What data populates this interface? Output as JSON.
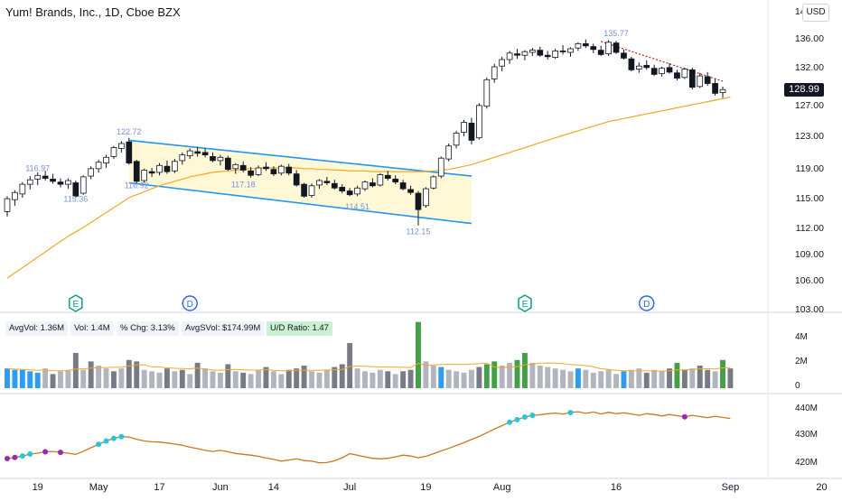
{
  "header": {
    "title": "Yum! Brands, Inc., 1D, Cboe BZX",
    "currency": "USD",
    "last_price": "128.99"
  },
  "colors": {
    "up": "#131722",
    "down": "#131722",
    "ma": "#f5a623",
    "channel": "#2196f3",
    "channel_fill": "#fff8d6",
    "vol_blue": "#2e9cf2",
    "vol_green": "#43a047",
    "vol_grey": "#b2b5be",
    "vol_dark": "#787b86",
    "rs_line": "#c8781f",
    "marker_cyan": "#26c6da",
    "marker_purple": "#9c27b0",
    "trend": "#b71c1c"
  },
  "stats": [
    {
      "text": "AvgVol: 1.36M",
      "hl": false
    },
    {
      "text": "Vol: 1.4M",
      "hl": false
    },
    {
      "text": "% Chg: 3.13%",
      "hl": false
    },
    {
      "text": "AvgSVol: $174.99M",
      "hl": false
    },
    {
      "text": "U/D Ratio: 1.47",
      "hl": true
    }
  ],
  "events": [
    {
      "label": "E",
      "date_index": 9
    },
    {
      "label": "D",
      "date_index": 24
    },
    {
      "label": "E",
      "date_index": 68
    },
    {
      "label": "D",
      "date_index": 84
    }
  ],
  "chart_data": {
    "type": "candlestick",
    "title": "Yum! Brands, Inc., 1D, Cboe BZX",
    "price_axis": {
      "ticks": [
        "140.00",
        "136.00",
        "132.00",
        "127.00",
        "123.00",
        "119.00",
        "115.00",
        "112.00",
        "109.00",
        "106.00",
        "103.00"
      ],
      "ylim": [
        103,
        140
      ]
    },
    "volume_axis": {
      "ticks": [
        "4M",
        "2M",
        "0"
      ],
      "ylim": [
        0,
        5
      ]
    },
    "rs_axis": {
      "ticks": [
        "440M",
        "430M",
        "420M"
      ],
      "ylim": [
        417,
        444
      ]
    },
    "x_axis": {
      "ticks": [
        {
          "label": "19",
          "index": 4
        },
        {
          "label": "May",
          "index": 12
        },
        {
          "label": "17",
          "index": 20
        },
        {
          "label": "Jun",
          "index": 28
        },
        {
          "label": "14",
          "index": 35
        },
        {
          "label": "Jul",
          "index": 45
        },
        {
          "label": "19",
          "index": 55
        },
        {
          "label": "Aug",
          "index": 65
        },
        {
          "label": "16",
          "index": 80
        },
        {
          "label": "Sep",
          "index": 95
        },
        {
          "label": "20",
          "index": 107
        }
      ],
      "count": 110
    },
    "annotations": [
      {
        "text": "116.97",
        "index": 4,
        "price": 118.6
      },
      {
        "text": "115.36",
        "index": 9,
        "price": 114.6
      },
      {
        "text": "122.72",
        "index": 16,
        "price": 123.1
      },
      {
        "text": "116.92",
        "index": 17,
        "price": 116.3
      },
      {
        "text": "117.18",
        "index": 31,
        "price": 116.4
      },
      {
        "text": "114.51",
        "index": 46,
        "price": 113.8
      },
      {
        "text": "112.15",
        "index": 54,
        "price": 111.2
      },
      {
        "text": "135.77",
        "index": 80,
        "price": 136.3
      }
    ],
    "channel": {
      "upper": [
        [
          16,
          122.4
        ],
        [
          61,
          117.9
        ]
      ],
      "lower": [
        [
          16,
          117.0
        ],
        [
          61,
          112.4
        ]
      ]
    },
    "trendline": [
      [
        78,
        135.5
      ],
      [
        94,
        130.1
      ]
    ],
    "ohlc": [
      [
        113.6,
        115.2,
        113.1,
        114.9
      ],
      [
        114.8,
        116.0,
        114.2,
        115.7
      ],
      [
        115.5,
        117.1,
        115.0,
        116.8
      ],
      [
        116.8,
        117.9,
        116.1,
        117.4
      ],
      [
        117.5,
        118.4,
        116.7,
        118.0
      ],
      [
        117.9,
        118.6,
        117.3,
        117.6
      ],
      [
        117.5,
        118.2,
        116.9,
        117.2
      ],
      [
        117.1,
        117.6,
        116.4,
        116.8
      ],
      [
        116.8,
        117.6,
        116.2,
        117.3
      ],
      [
        117.0,
        117.3,
        115.0,
        115.2
      ],
      [
        115.6,
        118.0,
        115.4,
        117.8
      ],
      [
        117.9,
        119.2,
        117.5,
        118.9
      ],
      [
        118.9,
        120.0,
        118.4,
        119.7
      ],
      [
        119.6,
        120.6,
        119.0,
        120.3
      ],
      [
        120.4,
        121.7,
        120.1,
        121.5
      ],
      [
        121.4,
        122.3,
        120.9,
        122.0
      ],
      [
        122.2,
        122.7,
        119.4,
        119.6
      ],
      [
        119.8,
        120.0,
        116.9,
        117.2
      ],
      [
        117.3,
        118.9,
        117.0,
        118.7
      ],
      [
        118.5,
        119.0,
        117.8,
        118.3
      ],
      [
        118.4,
        119.6,
        118.0,
        119.3
      ],
      [
        119.2,
        119.9,
        118.2,
        118.5
      ],
      [
        118.6,
        120.1,
        118.3,
        119.8
      ],
      [
        119.9,
        120.9,
        119.4,
        120.6
      ],
      [
        120.5,
        121.4,
        120.1,
        121.1
      ],
      [
        121.0,
        121.6,
        120.4,
        120.8
      ],
      [
        120.9,
        121.4,
        120.3,
        120.6
      ],
      [
        120.4,
        120.9,
        119.7,
        119.9
      ],
      [
        119.9,
        120.6,
        119.3,
        120.3
      ],
      [
        120.2,
        120.5,
        118.6,
        118.8
      ],
      [
        118.9,
        119.6,
        118.2,
        119.4
      ],
      [
        119.3,
        119.8,
        118.4,
        118.7
      ],
      [
        118.6,
        119.1,
        117.7,
        118.0
      ],
      [
        118.1,
        119.3,
        117.9,
        119.0
      ],
      [
        119.1,
        119.7,
        118.6,
        118.9
      ],
      [
        118.8,
        119.2,
        117.9,
        118.2
      ],
      [
        118.3,
        119.4,
        118.0,
        119.2
      ],
      [
        119.1,
        119.5,
        118.0,
        118.3
      ],
      [
        118.2,
        118.7,
        116.5,
        116.7
      ],
      [
        116.8,
        117.0,
        115.0,
        115.2
      ],
      [
        115.3,
        116.9,
        115.0,
        116.6
      ],
      [
        116.7,
        117.5,
        116.2,
        117.3
      ],
      [
        117.2,
        117.8,
        116.7,
        117.0
      ],
      [
        116.9,
        117.4,
        116.1,
        116.3
      ],
      [
        116.4,
        116.8,
        115.6,
        115.9
      ],
      [
        115.9,
        116.3,
        115.2,
        115.4
      ],
      [
        115.5,
        116.6,
        115.2,
        116.3
      ],
      [
        116.2,
        117.3,
        115.9,
        117.1
      ],
      [
        117.0,
        117.6,
        116.4,
        116.6
      ],
      [
        116.7,
        118.3,
        116.5,
        118.1
      ],
      [
        118.0,
        118.6,
        117.3,
        117.6
      ],
      [
        117.5,
        118.0,
        116.8,
        117.1
      ],
      [
        117.0,
        117.4,
        116.0,
        116.2
      ],
      [
        116.1,
        116.6,
        115.4,
        115.7
      ],
      [
        115.6,
        115.9,
        112.2,
        113.8
      ],
      [
        114.2,
        116.4,
        114.0,
        116.2
      ],
      [
        116.3,
        118.0,
        116.1,
        117.8
      ],
      [
        117.9,
        120.4,
        117.6,
        120.2
      ],
      [
        120.1,
        122.0,
        119.8,
        121.7
      ],
      [
        121.8,
        123.6,
        121.4,
        123.3
      ],
      [
        123.4,
        125.0,
        122.9,
        124.7
      ],
      [
        124.6,
        125.3,
        121.9,
        122.4
      ],
      [
        122.7,
        127.2,
        122.5,
        126.9
      ],
      [
        126.8,
        130.6,
        126.5,
        130.3
      ],
      [
        130.4,
        132.4,
        129.9,
        132.0
      ],
      [
        132.1,
        133.4,
        131.4,
        133.0
      ],
      [
        133.0,
        134.2,
        132.4,
        133.9
      ],
      [
        133.8,
        134.5,
        133.1,
        133.6
      ],
      [
        133.6,
        134.3,
        132.9,
        134.1
      ],
      [
        134.0,
        134.6,
        133.5,
        134.3
      ],
      [
        134.3,
        134.8,
        133.4,
        133.6
      ],
      [
        133.6,
        134.2,
        133.0,
        133.4
      ],
      [
        133.3,
        134.5,
        133.1,
        134.2
      ],
      [
        134.2,
        135.0,
        133.7,
        134.1
      ],
      [
        134.0,
        134.7,
        133.4,
        134.5
      ],
      [
        134.6,
        135.4,
        134.2,
        135.2
      ],
      [
        135.2,
        135.8,
        134.6,
        134.9
      ],
      [
        134.8,
        135.2,
        133.9,
        134.4
      ],
      [
        134.3,
        134.9,
        133.5,
        133.7
      ],
      [
        133.8,
        135.7,
        133.5,
        135.4
      ],
      [
        135.3,
        135.6,
        133.8,
        134.0
      ],
      [
        133.9,
        134.4,
        133.0,
        133.2
      ],
      [
        133.1,
        133.4,
        131.4,
        131.6
      ],
      [
        131.7,
        132.6,
        131.2,
        132.1
      ],
      [
        132.2,
        132.9,
        131.6,
        131.9
      ],
      [
        131.8,
        132.3,
        130.8,
        131.0
      ],
      [
        131.1,
        132.0,
        130.7,
        131.8
      ],
      [
        131.9,
        132.5,
        131.1,
        131.3
      ],
      [
        131.2,
        131.6,
        130.2,
        130.5
      ],
      [
        130.6,
        131.9,
        130.4,
        131.7
      ],
      [
        131.6,
        131.9,
        129.0,
        129.3
      ],
      [
        129.4,
        131.2,
        129.2,
        130.8
      ],
      [
        130.7,
        131.3,
        129.5,
        129.8
      ],
      [
        129.8,
        130.4,
        128.2,
        128.5
      ],
      [
        128.6,
        129.4,
        127.9,
        128.99
      ]
    ],
    "ma50": [
      106.2,
      106.8,
      107.4,
      108.0,
      108.6,
      109.2,
      109.8,
      110.4,
      111.0,
      111.5,
      112.0,
      112.5,
      113.0,
      113.5,
      114.0,
      114.5,
      115.0,
      115.4,
      115.8,
      116.2,
      116.6,
      116.9,
      117.2,
      117.5,
      117.8,
      118.0,
      118.2,
      118.4,
      118.5,
      118.6,
      118.7,
      118.8,
      118.9,
      118.9,
      119.0,
      119.0,
      119.0,
      119.0,
      119.0,
      118.9,
      118.9,
      118.8,
      118.8,
      118.7,
      118.7,
      118.6,
      118.6,
      118.6,
      118.5,
      118.5,
      118.5,
      118.5,
      118.5,
      118.5,
      118.5,
      118.5,
      118.6,
      118.7,
      118.8,
      119.0,
      119.2,
      119.4,
      119.7,
      120.0,
      120.3,
      120.6,
      120.9,
      121.2,
      121.5,
      121.8,
      122.1,
      122.4,
      122.7,
      123.0,
      123.3,
      123.6,
      123.9,
      124.2,
      124.5,
      124.8,
      125.0,
      125.2,
      125.4,
      125.6,
      125.8,
      126.0,
      126.2,
      126.4,
      126.6,
      126.8,
      127.0,
      127.2,
      127.4,
      127.6,
      127.8,
      128.0
    ],
    "volume": [
      1.4,
      1.3,
      1.3,
      1.2,
      1.1,
      1.4,
      1.0,
      1.2,
      1.3,
      2.5,
      1.3,
      1.9,
      1.6,
      1.4,
      1.2,
      1.4,
      2.0,
      1.9,
      1.3,
      1.2,
      1.1,
      1.4,
      1.2,
      1.3,
      1.0,
      1.8,
      1.4,
      1.2,
      1.1,
      1.7,
      1.2,
      1.1,
      1.0,
      1.3,
      1.5,
      1.2,
      1.0,
      1.3,
      1.4,
      1.6,
      1.2,
      1.1,
      1.3,
      1.5,
      1.7,
      3.2,
      1.4,
      1.2,
      1.1,
      1.3,
      1.2,
      1.0,
      1.2,
      1.3,
      4.7,
      1.9,
      1.6,
      1.5,
      1.3,
      1.2,
      1.1,
      1.3,
      1.5,
      1.7,
      1.9,
      1.6,
      1.8,
      2.0,
      2.5,
      1.8,
      1.6,
      1.5,
      1.4,
      1.3,
      1.2,
      1.4,
      1.3,
      1.1,
      1.2,
      1.3,
      1.0,
      1.2,
      1.3,
      1.4,
      1.1,
      1.3,
      1.2,
      1.4,
      1.8,
      1.3,
      1.4,
      1.6,
      1.3,
      1.2,
      2.0,
      1.4
    ],
    "volume_colors": [
      "blue",
      "blue",
      "blue",
      "blue",
      "blue",
      "grey",
      "dark",
      "grey",
      "grey",
      "dark",
      "grey",
      "dark",
      "grey",
      "grey",
      "dark",
      "grey",
      "dark",
      "dark",
      "grey",
      "grey",
      "grey",
      "dark",
      "grey",
      "dark",
      "grey",
      "dark",
      "grey",
      "grey",
      "grey",
      "dark",
      "grey",
      "dark",
      "grey",
      "grey",
      "dark",
      "grey",
      "grey",
      "dark",
      "dark",
      "dark",
      "grey",
      "grey",
      "grey",
      "dark",
      "dark",
      "dark",
      "grey",
      "grey",
      "grey",
      "grey",
      "dark",
      "grey",
      "dark",
      "dark",
      "green",
      "grey",
      "grey",
      "blue",
      "grey",
      "grey",
      "grey",
      "grey",
      "dark",
      "green",
      "green",
      "grey",
      "grey",
      "green",
      "green",
      "grey",
      "grey",
      "grey",
      "grey",
      "grey",
      "grey",
      "blue",
      "grey",
      "grey",
      "grey",
      "grey",
      "grey",
      "blue",
      "grey",
      "grey",
      "dark",
      "grey",
      "grey",
      "dark",
      "green",
      "dark",
      "grey",
      "dark",
      "dark",
      "grey",
      "green",
      "dark"
    ],
    "rs_line": [
      422.4,
      422.8,
      423.3,
      424.0,
      424.3,
      424.8,
      424.9,
      424.6,
      424.3,
      423.9,
      425.0,
      426.2,
      427.4,
      428.6,
      429.5,
      430.1,
      430.0,
      429.2,
      428.6,
      428.3,
      428.2,
      427.9,
      427.5,
      427.1,
      426.4,
      425.9,
      425.3,
      424.9,
      425.3,
      424.8,
      424.2,
      423.9,
      423.6,
      423.2,
      422.6,
      422.1,
      421.5,
      421.9,
      422.3,
      421.7,
      421.5,
      420.9,
      421.0,
      421.6,
      422.7,
      424.1,
      423.6,
      423.0,
      422.5,
      422.3,
      422.5,
      423.0,
      423.6,
      423.3,
      422.7,
      423.2,
      424.1,
      425.1,
      426.0,
      427.0,
      428.0,
      429.1,
      430.2,
      431.5,
      432.8,
      434.0,
      435.2,
      436.1,
      437.0,
      437.6,
      437.8,
      438.2,
      438.4,
      438.1,
      438.6,
      438.9,
      438.3,
      438.8,
      438.1,
      438.7,
      438.2,
      438.5,
      438.1,
      437.6,
      438.2,
      437.9,
      437.4,
      437.9,
      437.5,
      437.1,
      437.6,
      437.2,
      436.8,
      437.3,
      436.9,
      436.5
    ],
    "rs_markers": [
      {
        "index": 0,
        "color": "purple"
      },
      {
        "index": 1,
        "color": "purple"
      },
      {
        "index": 2,
        "color": "cyan"
      },
      {
        "index": 3,
        "color": "cyan"
      },
      {
        "index": 5,
        "color": "purple"
      },
      {
        "index": 7,
        "color": "purple"
      },
      {
        "index": 12,
        "color": "cyan"
      },
      {
        "index": 13,
        "color": "cyan"
      },
      {
        "index": 14,
        "color": "cyan"
      },
      {
        "index": 15,
        "color": "cyan"
      },
      {
        "index": 66,
        "color": "cyan"
      },
      {
        "index": 67,
        "color": "cyan"
      },
      {
        "index": 68,
        "color": "cyan"
      },
      {
        "index": 69,
        "color": "cyan"
      },
      {
        "index": 74,
        "color": "cyan"
      },
      {
        "index": 89,
        "color": "purple"
      }
    ]
  }
}
